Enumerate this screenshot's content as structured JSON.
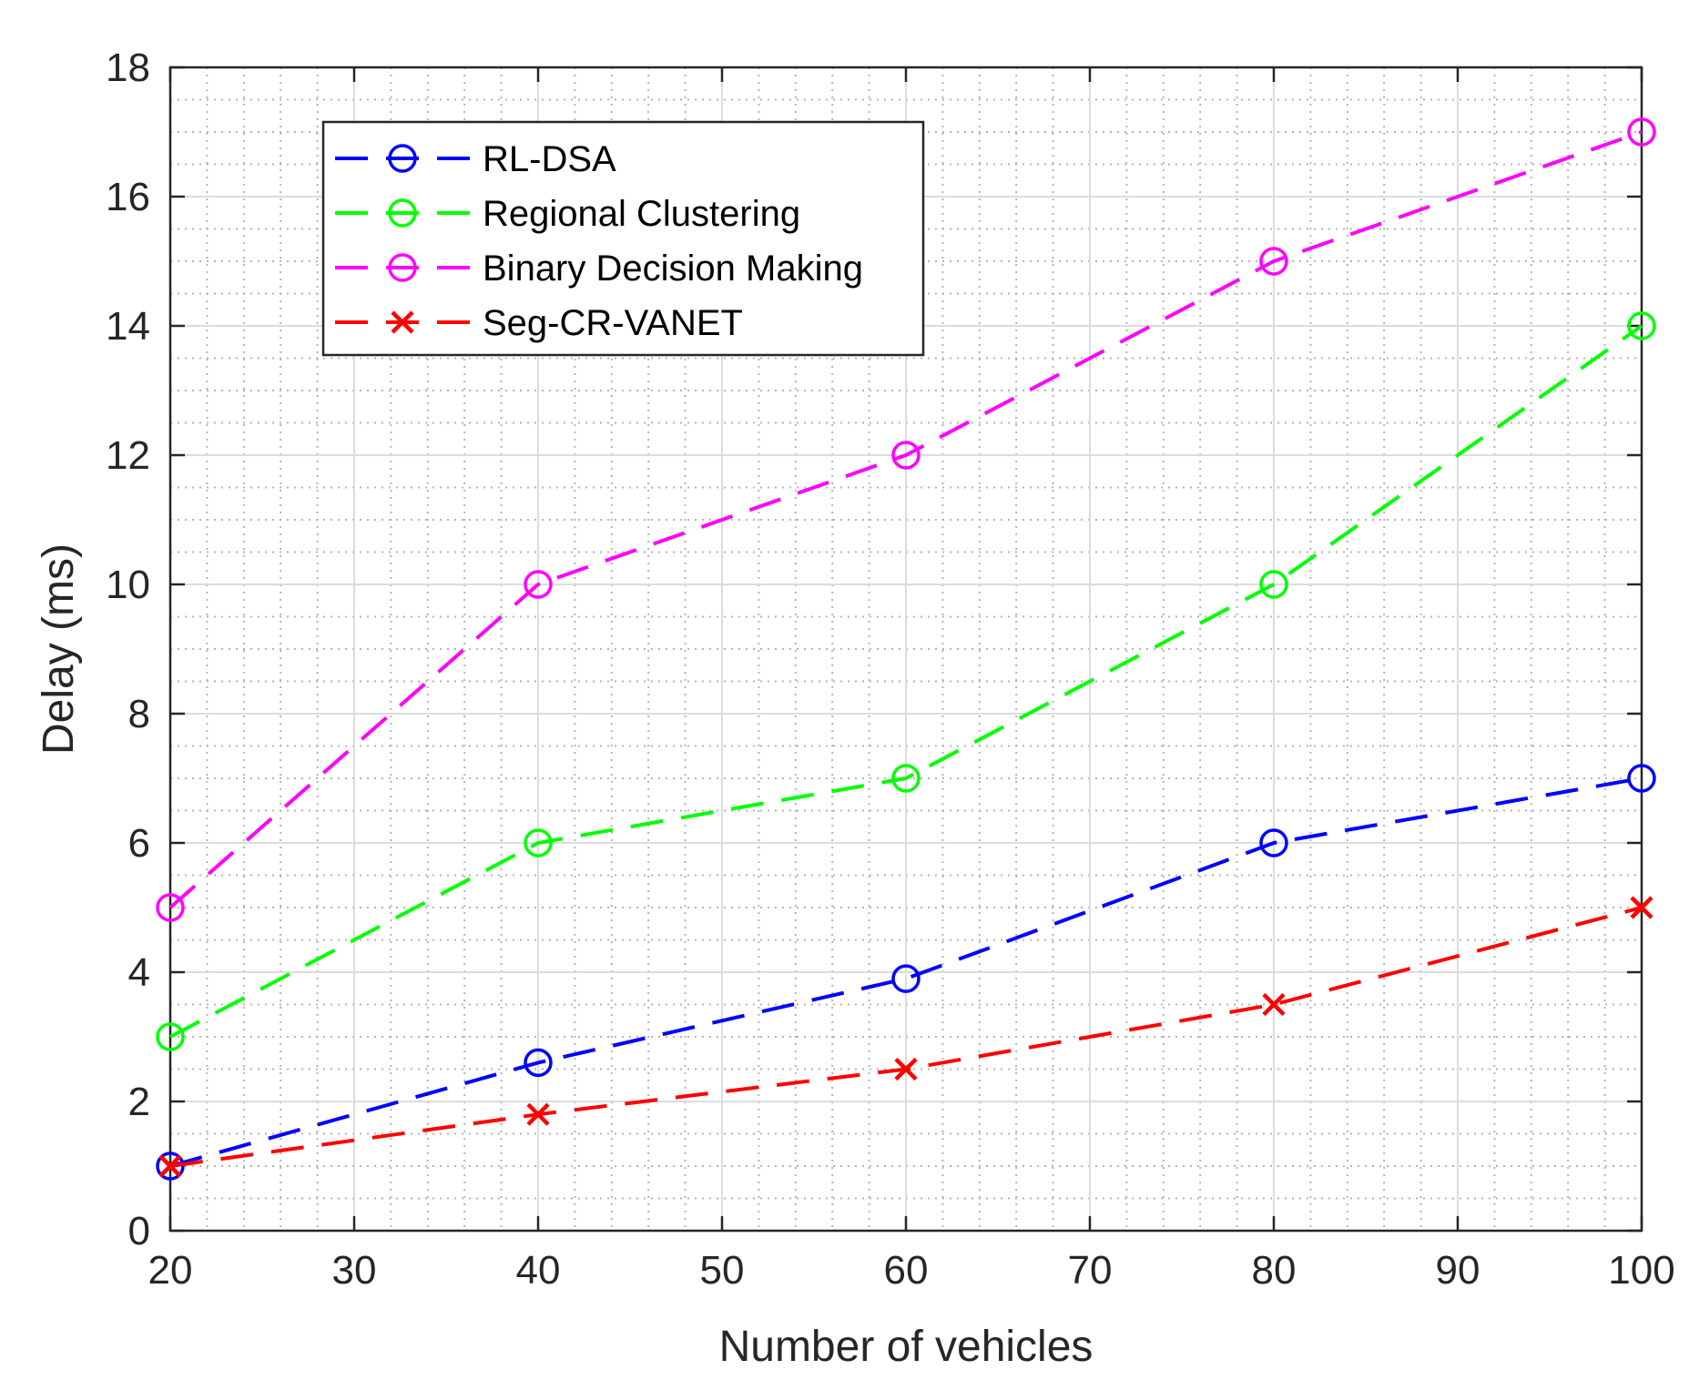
{
  "chart_data": {
    "type": "line",
    "title": "",
    "xlabel": "Number of vehicles",
    "ylabel": "Delay (ms)",
    "xlim": [
      20,
      100
    ],
    "ylim": [
      0,
      18
    ],
    "xticks": [
      20,
      30,
      40,
      50,
      60,
      70,
      80,
      90,
      100
    ],
    "yticks": [
      0,
      2,
      4,
      6,
      8,
      10,
      12,
      14,
      16,
      18
    ],
    "x": [
      20,
      40,
      60,
      80,
      100
    ],
    "grid": true,
    "minor_grid": true,
    "legend_position": "top-left",
    "series": [
      {
        "name": "RL-DSA",
        "values": [
          1,
          2.6,
          3.9,
          6,
          7
        ],
        "color": "#0000ff",
        "marker": "circle"
      },
      {
        "name": "Regional Clustering",
        "values": [
          3,
          6,
          7,
          10,
          14
        ],
        "color": "#00ff00",
        "marker": "circle"
      },
      {
        "name": "Binary Decision Making",
        "values": [
          5,
          10,
          12,
          15,
          17
        ],
        "color": "#ff00ff",
        "marker": "circle"
      },
      {
        "name": "Seg-CR-VANET",
        "values": [
          1,
          1.8,
          2.5,
          3.5,
          5
        ],
        "color": "#ff0000",
        "marker": "x"
      }
    ]
  }
}
